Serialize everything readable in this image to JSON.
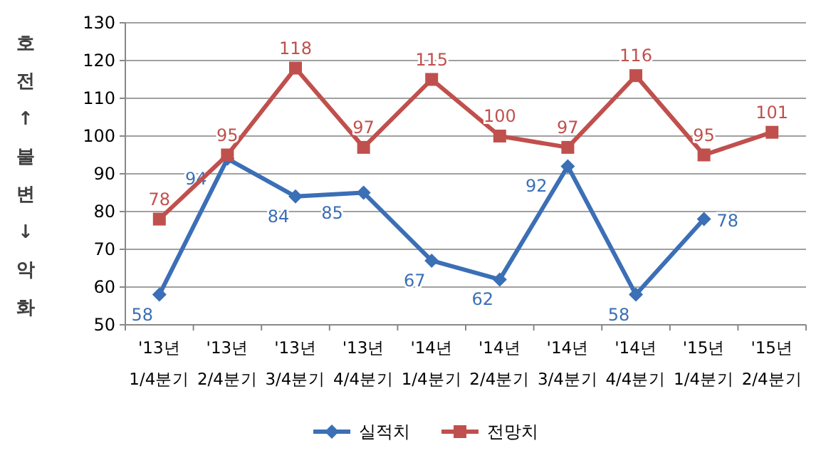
{
  "chart_data": {
    "type": "line",
    "ylabel": "호전 ↑ 불변 ↓ 악화",
    "categories": [
      "'13년 1/4분기",
      "'13년 2/4분기",
      "'13년 3/4분기",
      "'13년 4/4분기",
      "'14년 1/4분기",
      "'14년 2/4분기",
      "'14년 3/4분기",
      "'14년 4/4분기",
      "'15년 1/4분기",
      "'15년 2/4분기"
    ],
    "series": [
      {
        "name": "실적치",
        "color": "#3b6fb6",
        "marker": "diamond",
        "values": [
          58,
          94,
          84,
          85,
          67,
          62,
          92,
          58,
          78,
          null
        ]
      },
      {
        "name": "전망치",
        "color": "#c0504d",
        "marker": "square",
        "values": [
          78,
          95,
          118,
          97,
          115,
          100,
          97,
          116,
          95,
          101
        ]
      }
    ],
    "ylim": [
      50,
      130
    ],
    "yticks": [
      50,
      60,
      70,
      80,
      90,
      100,
      110,
      120,
      130
    ],
    "grid": "y",
    "legend": "bottom",
    "data_labels": true
  }
}
